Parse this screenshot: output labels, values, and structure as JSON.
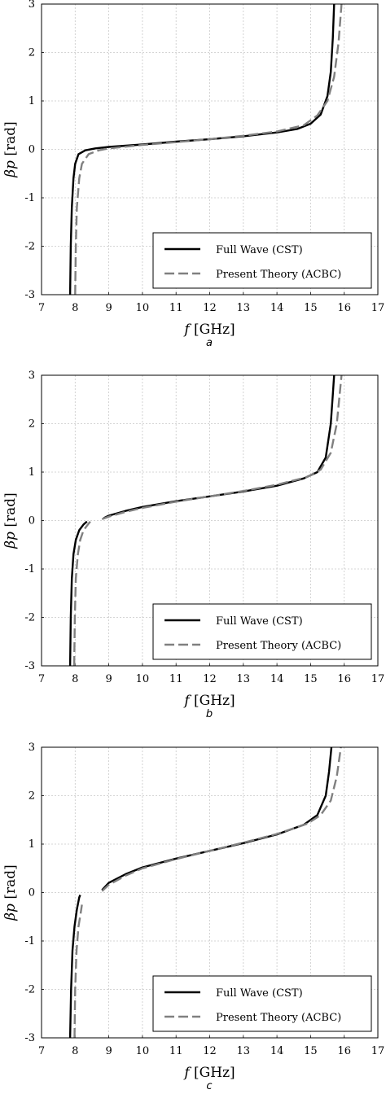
{
  "figure": {
    "colors": {
      "full_wave": "#000000",
      "present_theory": "#808080",
      "grid": "#c8c8c8"
    }
  },
  "chart_data": [
    {
      "type": "line",
      "caption": "a",
      "xlabel_var": "f",
      "xlabel_unit": "[GHz]",
      "ylabel_var": "βp",
      "ylabel_unit": "[rad]",
      "xlim": [
        7,
        17
      ],
      "ylim": [
        -3,
        3
      ],
      "xticks": [
        "7",
        "8",
        "9",
        "10",
        "11",
        "12",
        "13",
        "14",
        "15",
        "16",
        "17"
      ],
      "yticks": [
        "-3",
        "-2",
        "-1",
        "0",
        "1",
        "2",
        "3"
      ],
      "grid": true,
      "legend_position": "bottom-right",
      "series": [
        {
          "name": "Full Wave (CST)",
          "style": "solid",
          "color": "#000000",
          "segments": [
            [
              [
                7.85,
                -3
              ],
              [
                7.87,
                -2.0
              ],
              [
                7.9,
                -1.2
              ],
              [
                7.95,
                -0.6
              ],
              [
                8.0,
                -0.3
              ],
              [
                8.1,
                -0.1
              ],
              [
                8.3,
                -0.02
              ],
              [
                8.6,
                0.02
              ],
              [
                9,
                0.05
              ],
              [
                10,
                0.1
              ],
              [
                11,
                0.16
              ],
              [
                12,
                0.21
              ],
              [
                13,
                0.27
              ],
              [
                14,
                0.35
              ],
              [
                14.6,
                0.42
              ],
              [
                15.0,
                0.53
              ],
              [
                15.3,
                0.72
              ],
              [
                15.5,
                1.1
              ],
              [
                15.6,
                1.6
              ],
              [
                15.66,
                2.3
              ],
              [
                15.7,
                3
              ]
            ]
          ]
        },
        {
          "name": "Present Theory (ACBC)",
          "style": "dashed",
          "color": "#808080",
          "segments": [
            [
              [
                8.0,
                -3
              ],
              [
                8.02,
                -2.0
              ],
              [
                8.05,
                -1.2
              ],
              [
                8.12,
                -0.6
              ],
              [
                8.2,
                -0.3
              ],
              [
                8.4,
                -0.1
              ],
              [
                8.7,
                -0.02
              ],
              [
                9,
                0.02
              ],
              [
                10,
                0.09
              ],
              [
                11,
                0.15
              ],
              [
                12,
                0.21
              ],
              [
                13,
                0.28
              ],
              [
                14,
                0.37
              ],
              [
                14.8,
                0.5
              ],
              [
                15.2,
                0.7
              ],
              [
                15.5,
                1.0
              ],
              [
                15.7,
                1.5
              ],
              [
                15.83,
                2.2
              ],
              [
                15.92,
                3
              ]
            ]
          ]
        }
      ]
    },
    {
      "type": "line",
      "caption": "b",
      "xlabel_var": "f",
      "xlabel_unit": "[GHz]",
      "ylabel_var": "βp",
      "ylabel_unit": "[rad]",
      "xlim": [
        7,
        17
      ],
      "ylim": [
        -3,
        3
      ],
      "xticks": [
        "7",
        "8",
        "9",
        "10",
        "11",
        "12",
        "13",
        "14",
        "15",
        "16",
        "17"
      ],
      "yticks": [
        "-3",
        "-2",
        "-1",
        "0",
        "1",
        "2",
        "3"
      ],
      "grid": true,
      "legend_position": "bottom-right",
      "series": [
        {
          "name": "Full Wave (CST)",
          "style": "solid",
          "color": "#000000",
          "segments": [
            [
              [
                7.85,
                -3
              ],
              [
                7.87,
                -2.0
              ],
              [
                7.9,
                -1.2
              ],
              [
                7.95,
                -0.7
              ],
              [
                8.02,
                -0.4
              ],
              [
                8.12,
                -0.2
              ],
              [
                8.25,
                -0.08
              ],
              [
                8.35,
                -0.02
              ]
            ],
            [
              [
                8.85,
                0.05
              ],
              [
                9,
                0.1
              ],
              [
                9.5,
                0.2
              ],
              [
                10,
                0.28
              ],
              [
                11,
                0.4
              ],
              [
                12,
                0.5
              ],
              [
                13,
                0.6
              ],
              [
                14,
                0.72
              ],
              [
                14.8,
                0.87
              ],
              [
                15.2,
                1.0
              ],
              [
                15.45,
                1.3
              ],
              [
                15.6,
                2.0
              ],
              [
                15.66,
                2.6
              ],
              [
                15.7,
                3
              ]
            ]
          ]
        },
        {
          "name": "Present Theory (ACBC)",
          "style": "dashed",
          "color": "#808080",
          "segments": [
            [
              [
                7.97,
                -3
              ],
              [
                7.99,
                -2.0
              ],
              [
                8.02,
                -1.2
              ],
              [
                8.08,
                -0.7
              ],
              [
                8.15,
                -0.4
              ],
              [
                8.25,
                -0.2
              ],
              [
                8.38,
                -0.08
              ],
              [
                8.45,
                -0.02
              ]
            ],
            [
              [
                8.8,
                0.03
              ],
              [
                9,
                0.08
              ],
              [
                9.5,
                0.18
              ],
              [
                10,
                0.26
              ],
              [
                11,
                0.39
              ],
              [
                12,
                0.5
              ],
              [
                13,
                0.61
              ],
              [
                14,
                0.74
              ],
              [
                14.9,
                0.9
              ],
              [
                15.3,
                1.05
              ],
              [
                15.6,
                1.4
              ],
              [
                15.78,
                2.0
              ],
              [
                15.85,
                2.5
              ],
              [
                15.92,
                3
              ]
            ]
          ]
        }
      ]
    },
    {
      "type": "line",
      "caption": "c",
      "xlabel_var": "f",
      "xlabel_unit": "[GHz]",
      "ylabel_var": "βp",
      "ylabel_unit": "[rad]",
      "xlim": [
        7,
        17
      ],
      "ylim": [
        -3,
        3
      ],
      "xticks": [
        "7",
        "8",
        "9",
        "10",
        "11",
        "12",
        "13",
        "14",
        "15",
        "16",
        "17"
      ],
      "yticks": [
        "-3",
        "-2",
        "-1",
        "0",
        "1",
        "2",
        "3"
      ],
      "grid": true,
      "legend_position": "bottom-right",
      "series": [
        {
          "name": "Full Wave (CST)",
          "style": "solid",
          "color": "#000000",
          "segments": [
            [
              [
                7.85,
                -3
              ],
              [
                7.88,
                -2.0
              ],
              [
                7.92,
                -1.2
              ],
              [
                7.98,
                -0.7
              ],
              [
                8.05,
                -0.35
              ],
              [
                8.12,
                -0.1
              ],
              [
                8.15,
                -0.05
              ]
            ],
            [
              [
                8.8,
                0.05
              ],
              [
                9,
                0.2
              ],
              [
                9.5,
                0.38
              ],
              [
                10,
                0.52
              ],
              [
                11,
                0.7
              ],
              [
                12,
                0.86
              ],
              [
                13,
                1.02
              ],
              [
                14,
                1.2
              ],
              [
                14.8,
                1.4
              ],
              [
                15.2,
                1.6
              ],
              [
                15.45,
                2.0
              ],
              [
                15.55,
                2.5
              ],
              [
                15.62,
                3
              ]
            ]
          ]
        },
        {
          "name": "Present Theory (ACBC)",
          "style": "dashed",
          "color": "#808080",
          "segments": [
            [
              [
                7.98,
                -3
              ],
              [
                8.0,
                -2.0
              ],
              [
                8.04,
                -1.2
              ],
              [
                8.1,
                -0.7
              ],
              [
                8.17,
                -0.4
              ],
              [
                8.2,
                -0.25
              ]
            ],
            [
              [
                8.8,
                0.03
              ],
              [
                9,
                0.16
              ],
              [
                9.5,
                0.35
              ],
              [
                10,
                0.5
              ],
              [
                11,
                0.69
              ],
              [
                12,
                0.86
              ],
              [
                13,
                1.03
              ],
              [
                14,
                1.21
              ],
              [
                14.9,
                1.42
              ],
              [
                15.3,
                1.6
              ],
              [
                15.6,
                1.9
              ],
              [
                15.78,
                2.4
              ],
              [
                15.9,
                3
              ]
            ]
          ]
        }
      ]
    }
  ]
}
